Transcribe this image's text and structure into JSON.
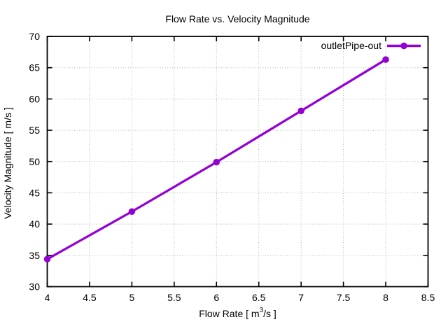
{
  "figure": {
    "background": "#ffffff",
    "axis_color": "#000000",
    "grid_color": "#b4b4b4"
  },
  "chart_data": {
    "type": "line",
    "title": "Flow Rate vs. Velocity Magnitude",
    "xlabel": {
      "pre": "Flow Rate [ m",
      "sup": "3",
      "post": "/s ]"
    },
    "ylabel": "Velocity Magnitude [ m/s ]",
    "xlim": [
      4,
      8.5
    ],
    "ylim": [
      30,
      70
    ],
    "xticks": {
      "values": [
        4,
        4.5,
        5,
        5.5,
        6,
        6.5,
        7,
        7.5,
        8,
        8.5
      ],
      "labels": [
        "4",
        "4.5",
        "5",
        "5.5",
        "6",
        "6.5",
        "7",
        "7.5",
        "8",
        "8.5"
      ]
    },
    "yticks": {
      "values": [
        30,
        35,
        40,
        45,
        50,
        55,
        60,
        65,
        70
      ],
      "labels": [
        "30",
        "35",
        "40",
        "45",
        "50",
        "55",
        "60",
        "65",
        "70"
      ]
    },
    "grid": true,
    "legend": {
      "position": "top-right-inside"
    },
    "series": [
      {
        "name": "outletPipe-out",
        "color": "#9400d3",
        "marker": "circle",
        "x": [
          4,
          5,
          6,
          7,
          8
        ],
        "y": [
          34.4,
          42.0,
          49.9,
          58.1,
          66.3
        ]
      }
    ]
  }
}
